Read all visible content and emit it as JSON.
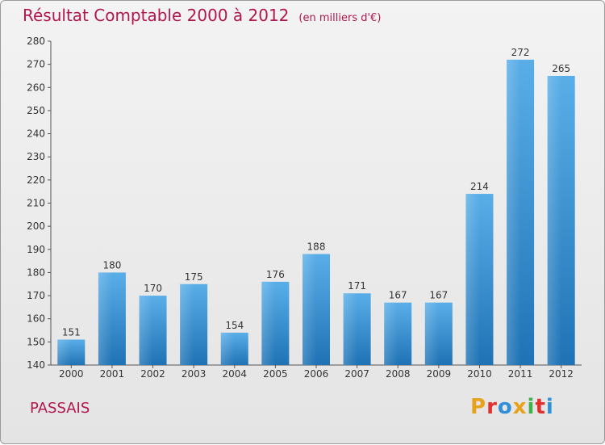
{
  "header": {
    "title": "Résultat Comptable 2000 à 2012",
    "subtitle": "(en milliers d'€)"
  },
  "footer": {
    "commune": "PASSAIS",
    "logo": "Proxiti",
    "logo_colors": [
      "#e8a21a",
      "#e0312f",
      "#2f8fd8",
      "#e8a21a",
      "#3db34a",
      "#e0312f",
      "#2f8fd8"
    ]
  },
  "colors": {
    "title": "#b0174f",
    "bar_light": "#5aaee8",
    "bar_dark": "#1f73b5"
  },
  "chart_data": {
    "type": "bar",
    "title": "Résultat Comptable 2000 à 2012",
    "subtitle": "(en milliers d'€)",
    "xlabel": "",
    "ylabel": "",
    "categories": [
      "2000",
      "2001",
      "2002",
      "2003",
      "2004",
      "2005",
      "2006",
      "2007",
      "2008",
      "2009",
      "2010",
      "2011",
      "2012"
    ],
    "values": [
      151,
      180,
      170,
      175,
      154,
      176,
      188,
      171,
      167,
      167,
      214,
      272,
      265
    ],
    "ylim": [
      140,
      280
    ],
    "yticks": [
      140,
      150,
      160,
      170,
      180,
      190,
      200,
      210,
      220,
      230,
      240,
      250,
      260,
      270,
      280
    ],
    "grid": false,
    "data_labels": true
  }
}
